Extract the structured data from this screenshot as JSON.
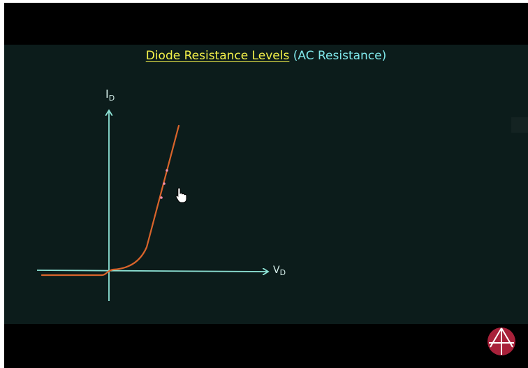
{
  "lecture": {
    "title_main": "Diode Resistance Levels",
    "title_sub": "(AC Resistance)"
  },
  "graph": {
    "y_axis_label": "I",
    "y_axis_subscript": "D",
    "x_axis_label": "V",
    "x_axis_subscript": "D"
  },
  "colors": {
    "board_background": "#0c1c1b",
    "title_main": "#f4f24a",
    "title_sub": "#7fe7ea",
    "axes": "#8ee3d6",
    "curve": "#d9642b",
    "marks": "#f08fb0"
  },
  "icons": {
    "cursor": "hand-cursor-icon",
    "logo": "channel-logo-icon"
  }
}
